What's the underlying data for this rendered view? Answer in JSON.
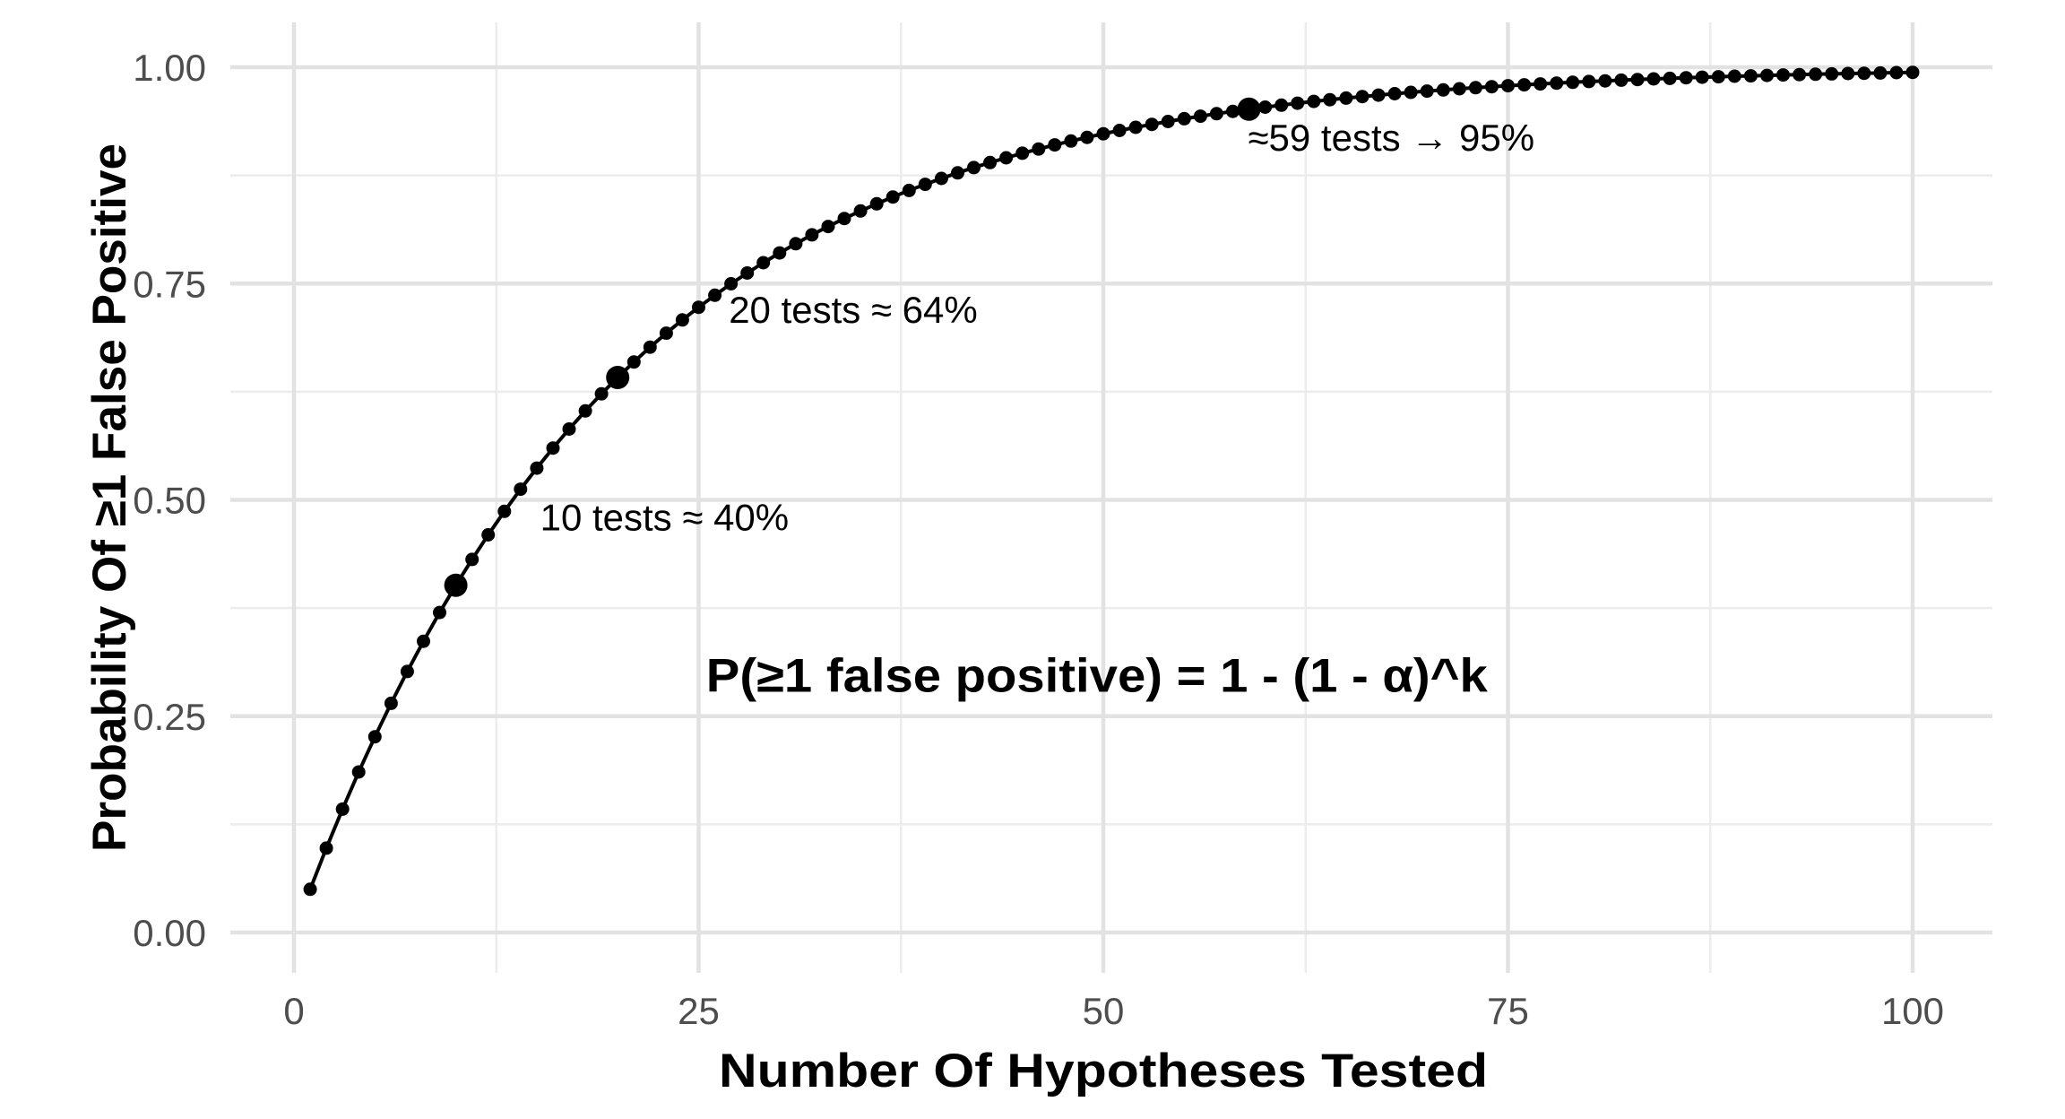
{
  "chart_data": {
    "type": "line",
    "title": "",
    "xlabel": "Number Of Hypotheses Tested",
    "ylabel": "Probability Of ≥1 False Positive",
    "grid": "on",
    "legend": "none",
    "alpha": 0.05,
    "formula_shown": "P(≥1 false positive) = 1 - (1 - α)^k",
    "x_axis": {
      "range": [
        1,
        100
      ],
      "major_ticks": [
        0,
        25,
        50,
        75,
        100
      ],
      "tick_labels": [
        "0",
        "25",
        "50",
        "75",
        "100"
      ],
      "minor_ticks": [
        12.5,
        37.5,
        62.5,
        87.5
      ]
    },
    "y_axis": {
      "range": [
        0,
        1
      ],
      "major_ticks": [
        0,
        0.25,
        0.5,
        0.75,
        1.0
      ],
      "tick_labels": [
        "0.00",
        "0.25",
        "0.50",
        "0.75",
        "1.00"
      ],
      "minor_ticks": [
        0.125,
        0.375,
        0.625,
        0.875
      ]
    },
    "series": [
      {
        "name": "P(≥1 false positive) = 1 - (1 - 0.05)^k",
        "x_start": 1,
        "x_step": 1,
        "values": [
          0.05,
          0.0975,
          0.1426,
          0.1855,
          0.2262,
          0.2649,
          0.3017,
          0.3366,
          0.3698,
          0.4013,
          0.4312,
          0.4596,
          0.4867,
          0.5123,
          0.5367,
          0.5599,
          0.5819,
          0.6028,
          0.6226,
          0.6415,
          0.6594,
          0.6765,
          0.6926,
          0.708,
          0.7226,
          0.7365,
          0.7497,
          0.7622,
          0.7741,
          0.7854,
          0.7961,
          0.8063,
          0.816,
          0.8252,
          0.8339,
          0.8422,
          0.8501,
          0.8576,
          0.8647,
          0.8715,
          0.8779,
          0.884,
          0.8898,
          0.8953,
          0.9006,
          0.9055,
          0.9103,
          0.9147,
          0.919,
          0.9231,
          0.9269,
          0.9306,
          0.934,
          0.9373,
          0.9405,
          0.9434,
          0.9463,
          0.949,
          0.9515,
          0.9539,
          0.9562,
          0.9584,
          0.9605,
          0.9625,
          0.9644,
          0.9661,
          0.9678,
          0.9694,
          0.971,
          0.9724,
          0.9738,
          0.9751,
          0.9764,
          0.9775,
          0.9787,
          0.9797,
          0.9807,
          0.9817,
          0.9826,
          0.9835,
          0.9843,
          0.9851,
          0.9858,
          0.9865,
          0.9872,
          0.9879,
          0.9885,
          0.989,
          0.9896,
          0.9901,
          0.9906,
          0.9911,
          0.9915,
          0.9919,
          0.9923,
          0.9927,
          0.9931,
          0.9934,
          0.9938,
          0.9941
        ]
      }
    ],
    "highlighted_points": [
      {
        "x": 10,
        "y": 0.4013
      },
      {
        "x": 20,
        "y": 0.6415
      },
      {
        "x": 59,
        "y": 0.9515
      }
    ],
    "annotations": [
      {
        "text": "10 tests ≈ 40%",
        "x": 10,
        "y": 0.4013
      },
      {
        "text": "20 tests ≈ 64%",
        "x": 20,
        "y": 0.6415
      },
      {
        "text": "≈59 tests → 95%",
        "x": 59,
        "y": 0.9515
      },
      {
        "text": "P(≥1 false positive) = 1 - (1 - α)^k",
        "x": 49.6,
        "y": 0.295
      }
    ],
    "colors": {
      "line": "#000000",
      "point": "#000000",
      "tick_label": "#4d4d4d",
      "axis_title": "#000000",
      "annotation_text": "#000000",
      "grid_major": "#e2e2e2",
      "grid_minor": "#ececec",
      "background": "#ffffff"
    }
  }
}
